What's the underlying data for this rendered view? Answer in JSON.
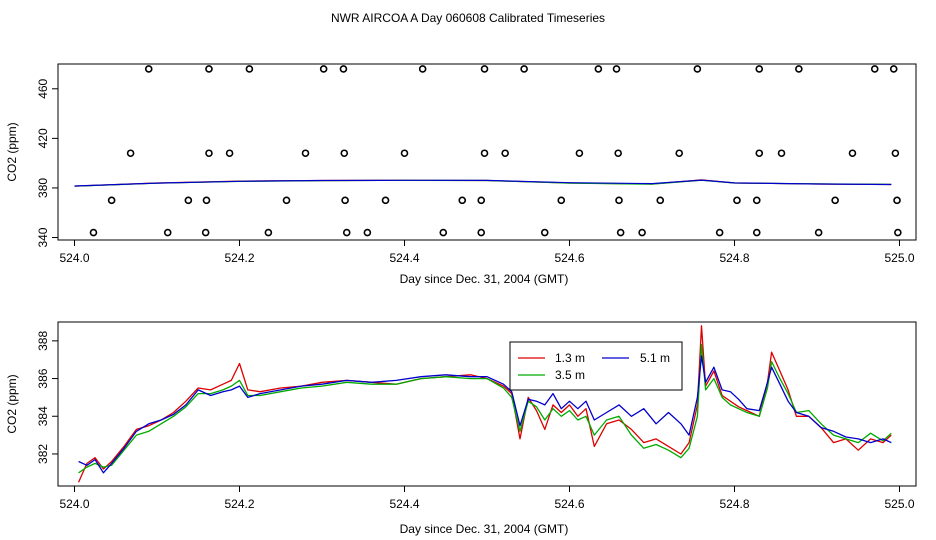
{
  "title": "NWR AIRCOA A  Day 060608  Calibrated Timeseries",
  "chart_data": [
    {
      "type": "scatter",
      "ylabel": "CO2 (ppm)",
      "xlabel": "Day since Dec. 31, 2004 (GMT)",
      "xlim": [
        523.98,
        525.02
      ],
      "ylim": [
        338,
        480
      ],
      "x_ticks": [
        "524.0",
        "524.2",
        "524.4",
        "524.6",
        "524.8",
        "525.0"
      ],
      "y_ticks": [
        "340",
        "380",
        "420",
        "460"
      ],
      "calibration_points": {
        "y476": [
          524.09,
          524.163,
          524.212,
          524.302,
          524.326,
          524.422,
          524.497,
          524.545,
          524.635,
          524.657,
          524.755,
          524.83,
          524.878,
          524.97,
          524.993
        ],
        "y408": [
          524.068,
          524.163,
          524.188,
          524.28,
          524.327,
          524.4,
          524.497,
          524.522,
          524.612,
          524.659,
          524.733,
          524.83,
          524.857,
          524.943,
          524.995
        ],
        "y370": [
          524.045,
          524.138,
          524.16,
          524.257,
          524.328,
          524.377,
          524.47,
          524.493,
          524.59,
          524.66,
          524.71,
          524.803,
          524.827,
          524.922,
          524.997
        ],
        "y344": [
          524.023,
          524.113,
          524.159,
          524.235,
          524.33,
          524.355,
          524.447,
          524.493,
          524.57,
          524.662,
          524.688,
          524.782,
          524.827,
          524.902,
          524.998
        ]
      },
      "line_series": [
        {
          "name": "1.3 m",
          "color": "#dd0000",
          "x": [
            524.0,
            524.1,
            524.2,
            524.3,
            524.4,
            524.5,
            524.6,
            524.7,
            524.76,
            524.8,
            524.9,
            524.99
          ],
          "values": [
            381.5,
            384.0,
            385.5,
            386.0,
            386.2,
            386.0,
            384.0,
            383.2,
            386.5,
            384.0,
            383.2,
            382.8
          ]
        },
        {
          "name": "3.5 m",
          "color": "#00aa00",
          "x": [
            524.0,
            524.1,
            524.2,
            524.3,
            524.4,
            524.5,
            524.6,
            524.7,
            524.76,
            524.8,
            524.9,
            524.99
          ],
          "values": [
            381.4,
            383.8,
            385.3,
            385.9,
            386.1,
            386.0,
            383.8,
            383.0,
            386.2,
            384.0,
            383.3,
            382.9
          ]
        },
        {
          "name": "5.1 m",
          "color": "#0000cc",
          "x": [
            524.0,
            524.1,
            524.2,
            524.3,
            524.4,
            524.5,
            524.6,
            524.7,
            524.76,
            524.8,
            524.9,
            524.99
          ],
          "values": [
            381.6,
            383.9,
            385.4,
            386.0,
            386.2,
            386.1,
            384.2,
            383.5,
            386.3,
            384.1,
            383.2,
            382.8
          ]
        }
      ]
    },
    {
      "type": "line",
      "ylabel": "CO2 (ppm)",
      "xlabel": "Day since Dec. 31, 2004 (GMT)",
      "xlim": [
        523.98,
        525.02
      ],
      "ylim": [
        380.3,
        389.0
      ],
      "x_ticks": [
        "524.0",
        "524.2",
        "524.4",
        "524.6",
        "524.8",
        "525.0"
      ],
      "y_ticks": [
        "382",
        "384",
        "386",
        "388"
      ],
      "legend": "top-center",
      "series": [
        {
          "name": "1.3 m",
          "color": "#dd0000",
          "x": [
            524.005,
            524.015,
            524.025,
            524.035,
            524.045,
            524.06,
            524.075,
            524.09,
            524.105,
            524.12,
            524.135,
            524.15,
            524.165,
            524.18,
            524.19,
            524.2,
            524.21,
            524.225,
            524.25,
            524.275,
            524.3,
            524.33,
            524.36,
            524.39,
            524.42,
            524.45,
            524.48,
            524.5,
            524.52,
            524.53,
            524.54,
            524.55,
            524.56,
            524.57,
            524.58,
            524.59,
            524.6,
            524.61,
            524.62,
            524.63,
            524.645,
            524.66,
            524.675,
            524.69,
            524.705,
            524.72,
            524.735,
            524.745,
            524.755,
            524.76,
            524.765,
            524.775,
            524.785,
            524.795,
            524.805,
            524.815,
            524.83,
            524.84,
            524.845,
            524.855,
            524.865,
            524.875,
            524.89,
            524.905,
            524.92,
            524.935,
            524.95,
            524.965,
            524.98,
            524.99
          ],
          "values": [
            380.5,
            381.5,
            381.8,
            381.2,
            381.6,
            382.4,
            383.3,
            383.5,
            383.8,
            384.2,
            384.8,
            385.5,
            385.4,
            385.7,
            385.9,
            386.8,
            385.4,
            385.3,
            385.5,
            385.6,
            385.8,
            385.9,
            385.8,
            385.7,
            386.0,
            386.1,
            386.2,
            386.0,
            385.6,
            385.2,
            382.8,
            385.0,
            384.3,
            383.3,
            384.6,
            384.2,
            384.6,
            384.0,
            384.4,
            382.4,
            383.6,
            383.8,
            383.3,
            382.6,
            382.8,
            382.4,
            382.0,
            382.6,
            384.6,
            388.8,
            385.6,
            386.4,
            385.1,
            384.8,
            384.5,
            384.3,
            384.0,
            385.8,
            387.4,
            386.4,
            385.4,
            384.0,
            384.0,
            383.4,
            382.6,
            382.8,
            382.2,
            382.8,
            382.6,
            383.0
          ]
        },
        {
          "name": "3.5 m",
          "color": "#00aa00",
          "x": [
            524.005,
            524.015,
            524.025,
            524.035,
            524.045,
            524.06,
            524.075,
            524.09,
            524.105,
            524.12,
            524.135,
            524.15,
            524.165,
            524.18,
            524.19,
            524.2,
            524.21,
            524.225,
            524.25,
            524.275,
            524.3,
            524.33,
            524.36,
            524.39,
            524.42,
            524.45,
            524.48,
            524.5,
            524.52,
            524.53,
            524.54,
            524.55,
            524.56,
            524.57,
            524.58,
            524.59,
            524.6,
            524.61,
            524.62,
            524.63,
            524.645,
            524.66,
            524.675,
            524.69,
            524.705,
            524.72,
            524.735,
            524.745,
            524.755,
            524.76,
            524.765,
            524.775,
            524.785,
            524.795,
            524.805,
            524.815,
            524.83,
            524.84,
            524.845,
            524.855,
            524.865,
            524.875,
            524.89,
            524.905,
            524.92,
            524.935,
            524.95,
            524.965,
            524.98,
            524.99
          ],
          "values": [
            381.0,
            381.3,
            381.5,
            381.3,
            381.4,
            382.2,
            383.0,
            383.2,
            383.6,
            384.0,
            384.5,
            385.2,
            385.2,
            385.4,
            385.6,
            385.9,
            385.1,
            385.1,
            385.3,
            385.5,
            385.6,
            385.8,
            385.7,
            385.7,
            386.0,
            386.1,
            386.0,
            386.0,
            385.5,
            385.0,
            383.2,
            384.8,
            384.5,
            383.8,
            384.4,
            384.0,
            384.3,
            383.8,
            384.0,
            383.0,
            383.8,
            384.0,
            383.0,
            382.3,
            382.5,
            382.2,
            381.8,
            382.3,
            384.0,
            387.8,
            385.4,
            386.0,
            385.0,
            384.6,
            384.4,
            384.2,
            384.0,
            385.5,
            386.9,
            386.0,
            385.2,
            384.2,
            384.3,
            383.6,
            383.0,
            382.8,
            382.6,
            383.1,
            382.7,
            383.1
          ]
        },
        {
          "name": "5.1 m",
          "color": "#0000cc",
          "x": [
            524.005,
            524.015,
            524.025,
            524.035,
            524.045,
            524.06,
            524.075,
            524.09,
            524.105,
            524.12,
            524.135,
            524.15,
            524.165,
            524.18,
            524.19,
            524.2,
            524.21,
            524.225,
            524.25,
            524.275,
            524.3,
            524.33,
            524.36,
            524.39,
            524.42,
            524.45,
            524.48,
            524.5,
            524.52,
            524.53,
            524.54,
            524.55,
            524.56,
            524.57,
            524.58,
            524.59,
            524.6,
            524.61,
            524.62,
            524.63,
            524.645,
            524.66,
            524.675,
            524.69,
            524.705,
            524.72,
            524.735,
            524.745,
            524.755,
            524.76,
            524.765,
            524.775,
            524.785,
            524.795,
            524.805,
            524.815,
            524.83,
            524.84,
            524.845,
            524.855,
            524.865,
            524.875,
            524.89,
            524.905,
            524.92,
            524.935,
            524.95,
            524.965,
            524.98,
            524.99
          ],
          "values": [
            381.6,
            381.4,
            381.7,
            381.0,
            381.5,
            382.3,
            383.2,
            383.6,
            383.8,
            384.1,
            384.6,
            385.4,
            385.1,
            385.3,
            385.4,
            385.6,
            385.0,
            385.2,
            385.4,
            385.6,
            385.7,
            385.9,
            385.8,
            385.9,
            386.1,
            386.2,
            386.1,
            386.1,
            385.7,
            385.3,
            383.5,
            384.9,
            384.8,
            384.6,
            385.2,
            384.4,
            384.8,
            384.4,
            384.8,
            383.8,
            384.2,
            384.6,
            384.0,
            384.4,
            383.6,
            384.2,
            383.6,
            383.0,
            385.0,
            387.2,
            385.8,
            386.6,
            385.4,
            385.3,
            384.9,
            384.4,
            384.3,
            385.8,
            386.6,
            385.7,
            384.8,
            384.2,
            384.0,
            383.4,
            383.2,
            382.9,
            382.8,
            382.6,
            382.8,
            382.6
          ]
        }
      ]
    }
  ]
}
